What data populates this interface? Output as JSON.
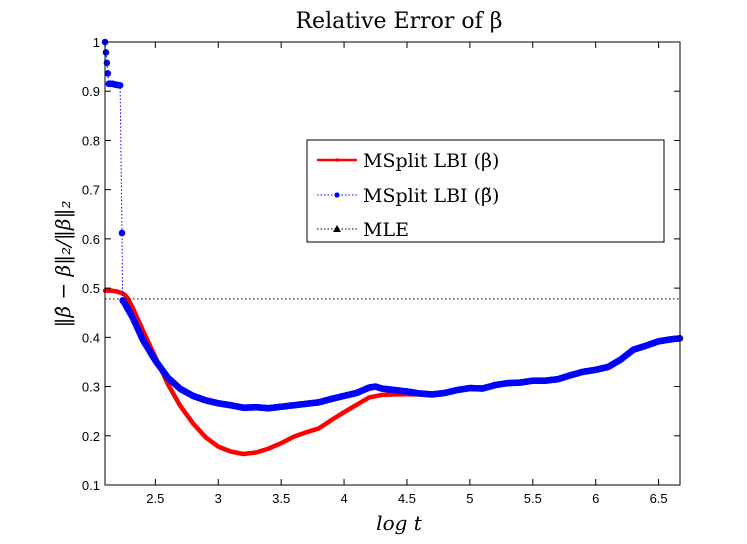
{
  "chart_data": {
    "type": "line",
    "title": "Relative Error of β",
    "xlabel": "log t",
    "ylabel": "‖β̂ − β‖₂/‖β‖₂",
    "xlim": [
      2.1,
      6.67
    ],
    "ylim": [
      0.1,
      1.0
    ],
    "xticks": [
      2.5,
      3,
      3.5,
      4,
      4.5,
      5,
      5.5,
      6,
      6.5
    ],
    "xtick_labels": [
      "2.5",
      "3",
      "3.5",
      "4",
      "4.5",
      "5",
      "5.5",
      "6",
      "6.5"
    ],
    "yticks": [
      0.1,
      0.2,
      0.3,
      0.4,
      0.5,
      0.6,
      0.7,
      0.8,
      0.9,
      1.0
    ],
    "ytick_labels": [
      "0.1",
      "0.2",
      "0.3",
      "0.4",
      "0.5",
      "0.6",
      "0.7",
      "0.8",
      "0.9",
      "1"
    ],
    "grid": false,
    "legend_position": "upper-right",
    "series": [
      {
        "name": "MSplit LBI (β)",
        "color": "#ff0000",
        "style": "solid",
        "x": [
          2.1,
          2.15,
          2.2,
          2.25,
          2.28,
          2.32,
          2.4,
          2.5,
          2.6,
          2.7,
          2.8,
          2.9,
          3.0,
          3.1,
          3.2,
          3.3,
          3.4,
          3.5,
          3.6,
          3.7,
          3.8,
          3.9,
          4.0,
          4.1,
          4.2,
          4.3,
          4.4,
          4.5,
          4.6,
          4.7
        ],
        "y": [
          0.495,
          0.495,
          0.493,
          0.488,
          0.48,
          0.46,
          0.415,
          0.36,
          0.305,
          0.26,
          0.225,
          0.197,
          0.178,
          0.168,
          0.163,
          0.166,
          0.174,
          0.185,
          0.198,
          0.207,
          0.215,
          0.232,
          0.248,
          0.263,
          0.278,
          0.283,
          0.284,
          0.284,
          0.284,
          0.284
        ]
      },
      {
        "name": "MSplit LBI (β̃)",
        "color": "#0000ff",
        "style": "dotted",
        "x": [
          2.1,
          2.13,
          2.16,
          2.19,
          2.22,
          2.235,
          2.24,
          2.26,
          2.28,
          2.32,
          2.4,
          2.5,
          2.6,
          2.7,
          2.8,
          2.9,
          3.0,
          3.1,
          3.2,
          3.3,
          3.4,
          3.5,
          3.6,
          3.7,
          3.8,
          3.9,
          4.0,
          4.1,
          4.2,
          4.25,
          4.3,
          4.4,
          4.5,
          4.6,
          4.7,
          4.8,
          4.9,
          5.0,
          5.1,
          5.2,
          5.3,
          5.4,
          5.5,
          5.6,
          5.7,
          5.8,
          5.9,
          6.0,
          6.1,
          6.2,
          6.3,
          6.4,
          6.5,
          6.6,
          6.67
        ],
        "y": [
          1.0,
          0.915,
          0.915,
          0.913,
          0.912,
          0.612,
          0.475,
          0.468,
          0.458,
          0.44,
          0.395,
          0.353,
          0.318,
          0.295,
          0.281,
          0.272,
          0.266,
          0.262,
          0.257,
          0.258,
          0.256,
          0.259,
          0.262,
          0.265,
          0.268,
          0.275,
          0.281,
          0.287,
          0.298,
          0.3,
          0.296,
          0.293,
          0.29,
          0.286,
          0.284,
          0.287,
          0.293,
          0.297,
          0.296,
          0.303,
          0.307,
          0.308,
          0.312,
          0.312,
          0.315,
          0.323,
          0.33,
          0.334,
          0.34,
          0.355,
          0.375,
          0.383,
          0.392,
          0.396,
          0.398
        ]
      },
      {
        "name": "MLE",
        "color": "#000000",
        "style": "dotted",
        "x": [
          2.1,
          6.67
        ],
        "y": [
          0.478,
          0.478
        ]
      }
    ]
  }
}
